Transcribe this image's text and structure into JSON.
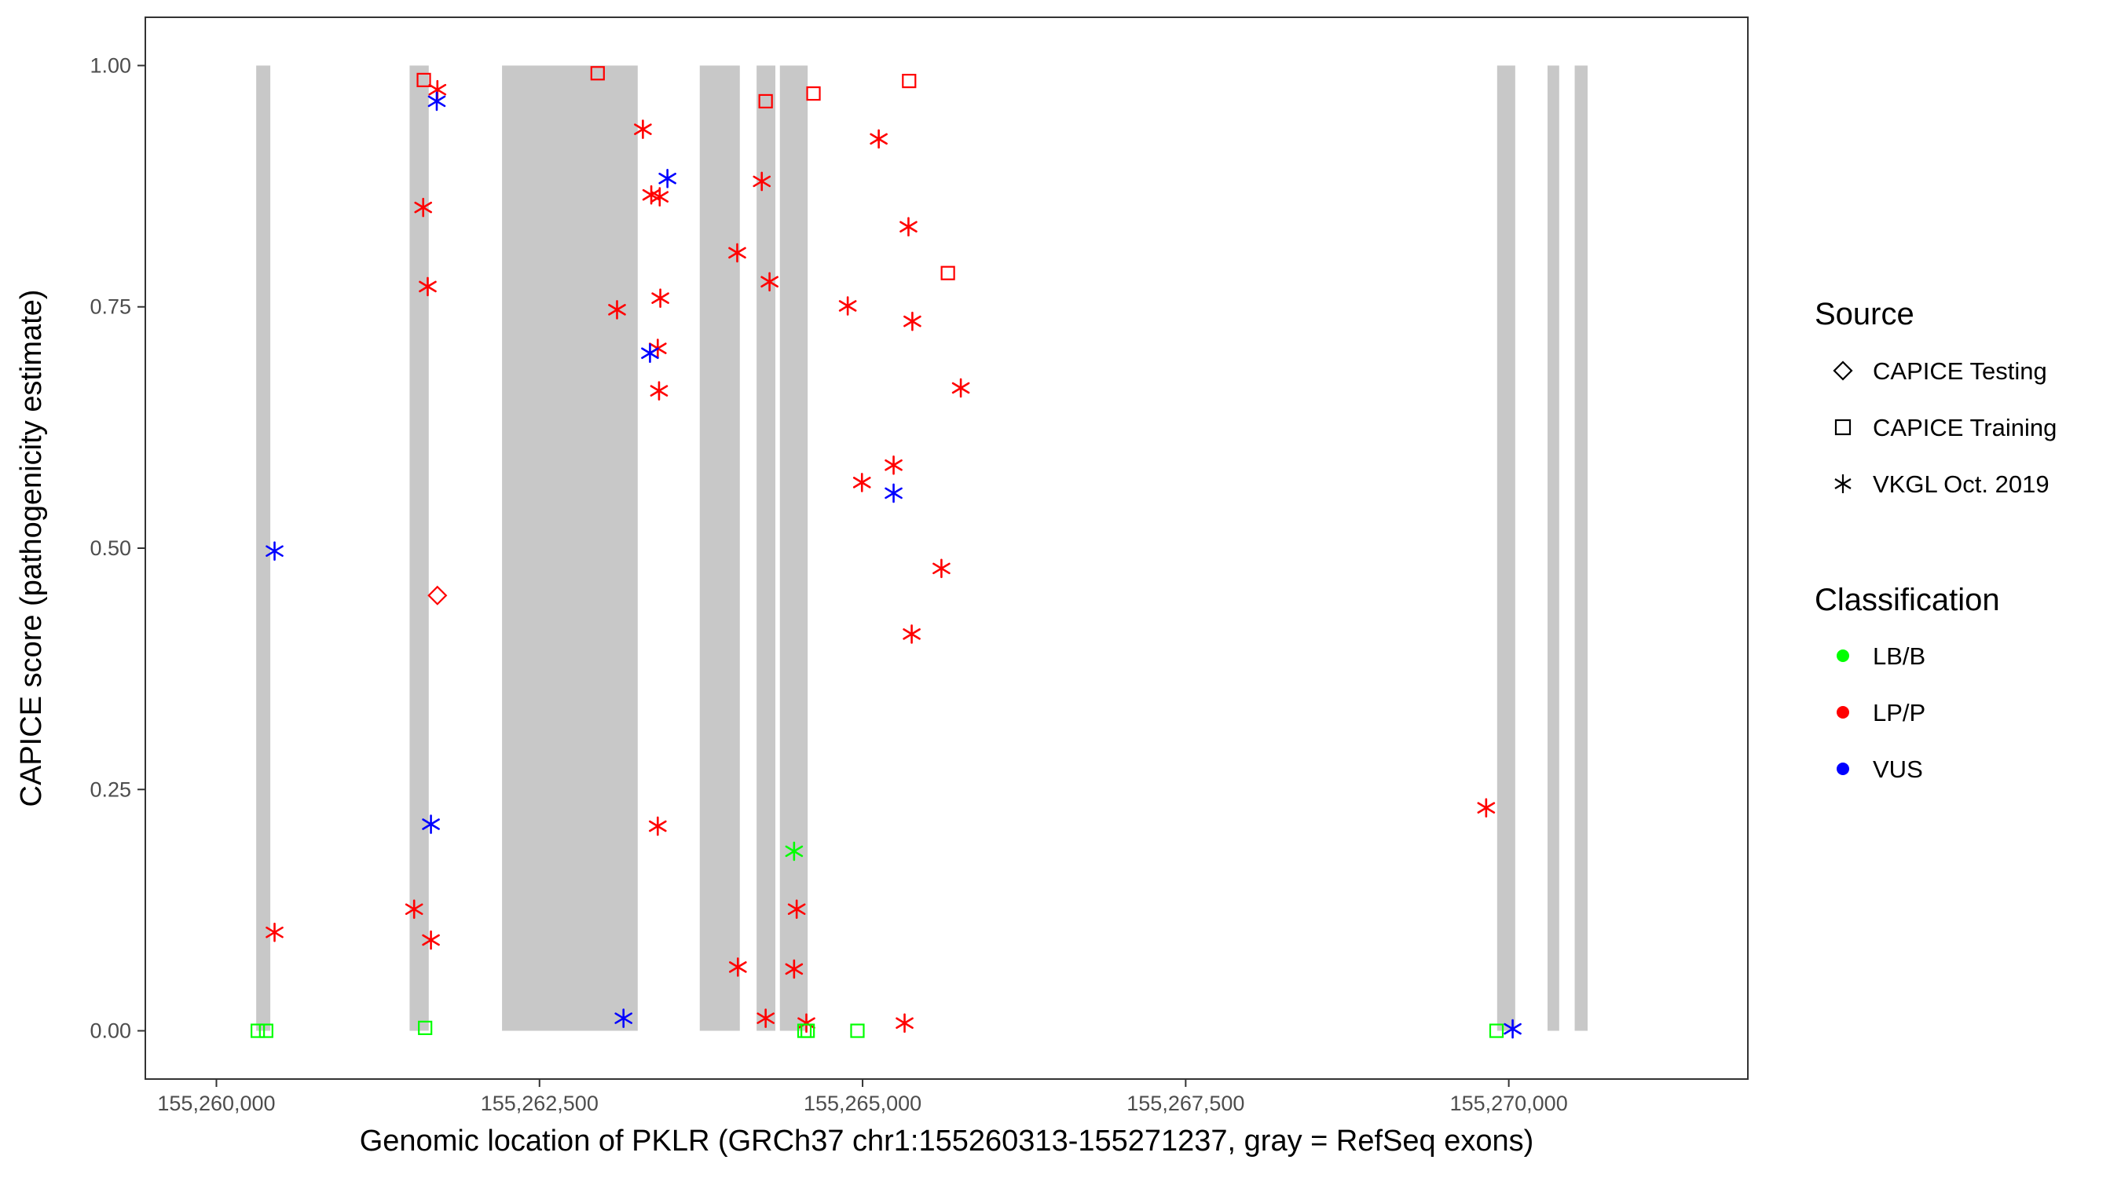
{
  "chart_data": {
    "type": "scatter",
    "xlabel": "Genomic location of PKLR (GRCh37 chr1:155260313-155271237, gray = RefSeq exons)",
    "ylabel": "CAPICE score (pathogenicity estimate)",
    "xlim": [
      155259450,
      155271850
    ],
    "ylim": [
      -0.05,
      1.05
    ],
    "grid": false,
    "exon_color": "#c8c8c8",
    "x_ticks": [
      {
        "value": 155260000,
        "label": "155,260,000"
      },
      {
        "value": 155262500,
        "label": "155,262,500"
      },
      {
        "value": 155265000,
        "label": "155,265,000"
      },
      {
        "value": 155267500,
        "label": "155,267,500"
      },
      {
        "value": 155270000,
        "label": "155,270,000"
      }
    ],
    "y_ticks": [
      {
        "value": 0.0,
        "label": "0.00"
      },
      {
        "value": 0.25,
        "label": "0.25"
      },
      {
        "value": 0.5,
        "label": "0.50"
      },
      {
        "value": 0.75,
        "label": "0.75"
      },
      {
        "value": 1.0,
        "label": "1.00"
      }
    ],
    "exons": [
      [
        155260308,
        155260417
      ],
      [
        155261495,
        155261643
      ],
      [
        155262210,
        155263260
      ],
      [
        155263740,
        155264050
      ],
      [
        155264180,
        155264325
      ],
      [
        155264360,
        155264575
      ],
      [
        155269910,
        155270050
      ],
      [
        155270300,
        155270390
      ],
      [
        155270510,
        155270610
      ]
    ],
    "legend": {
      "source": {
        "title": "Source",
        "items": [
          {
            "label": "CAPICE Testing",
            "shape": "diamond"
          },
          {
            "label": "CAPICE Training",
            "shape": "square"
          },
          {
            "label": "VKGL Oct. 2019",
            "shape": "asterisk"
          }
        ]
      },
      "classification": {
        "title": "Classification",
        "items": [
          {
            "label": "LB/B",
            "color": "#00ff00"
          },
          {
            "label": "LP/P",
            "color": "#ff0000"
          },
          {
            "label": "VUS",
            "color": "#0000ff"
          }
        ]
      }
    },
    "points": [
      {
        "x": 155260450,
        "y": 0.497,
        "shape": "asterisk",
        "cls": "VUS"
      },
      {
        "x": 155260450,
        "y": 0.102,
        "shape": "asterisk",
        "cls": "LP/P"
      },
      {
        "x": 155260320,
        "y": 0.0,
        "shape": "square",
        "cls": "LB/B"
      },
      {
        "x": 155260385,
        "y": 0.0,
        "shape": "square",
        "cls": "LB/B"
      },
      {
        "x": 155261605,
        "y": 0.985,
        "shape": "square",
        "cls": "LP/P"
      },
      {
        "x": 155261710,
        "y": 0.975,
        "shape": "asterisk",
        "cls": "LP/P"
      },
      {
        "x": 155261705,
        "y": 0.963,
        "shape": "asterisk",
        "cls": "VUS"
      },
      {
        "x": 155261600,
        "y": 0.853,
        "shape": "asterisk",
        "cls": "LP/P"
      },
      {
        "x": 155261635,
        "y": 0.771,
        "shape": "asterisk",
        "cls": "LP/P"
      },
      {
        "x": 155261710,
        "y": 0.451,
        "shape": "diamond",
        "cls": "LP/P"
      },
      {
        "x": 155261660,
        "y": 0.214,
        "shape": "asterisk",
        "cls": "VUS"
      },
      {
        "x": 155261530,
        "y": 0.126,
        "shape": "asterisk",
        "cls": "LP/P"
      },
      {
        "x": 155261660,
        "y": 0.094,
        "shape": "asterisk",
        "cls": "LP/P"
      },
      {
        "x": 155261615,
        "y": 0.003,
        "shape": "square",
        "cls": "LB/B"
      },
      {
        "x": 155262950,
        "y": 0.992,
        "shape": "square",
        "cls": "LP/P"
      },
      {
        "x": 155263300,
        "y": 0.934,
        "shape": "asterisk",
        "cls": "LP/P"
      },
      {
        "x": 155263490,
        "y": 0.883,
        "shape": "asterisk",
        "cls": "VUS"
      },
      {
        "x": 155263365,
        "y": 0.866,
        "shape": "asterisk",
        "cls": "LP/P"
      },
      {
        "x": 155263430,
        "y": 0.864,
        "shape": "asterisk",
        "cls": "LP/P"
      },
      {
        "x": 155263435,
        "y": 0.759,
        "shape": "asterisk",
        "cls": "LP/P"
      },
      {
        "x": 155263100,
        "y": 0.747,
        "shape": "asterisk",
        "cls": "LP/P"
      },
      {
        "x": 155263415,
        "y": 0.707,
        "shape": "asterisk",
        "cls": "LP/P"
      },
      {
        "x": 155263355,
        "y": 0.702,
        "shape": "asterisk",
        "cls": "VUS"
      },
      {
        "x": 155263425,
        "y": 0.663,
        "shape": "asterisk",
        "cls": "LP/P"
      },
      {
        "x": 155263415,
        "y": 0.212,
        "shape": "asterisk",
        "cls": "LP/P"
      },
      {
        "x": 155263150,
        "y": 0.013,
        "shape": "asterisk",
        "cls": "VUS"
      },
      {
        "x": 155264250,
        "y": 0.963,
        "shape": "square",
        "cls": "LP/P"
      },
      {
        "x": 155264620,
        "y": 0.971,
        "shape": "square",
        "cls": "LP/P"
      },
      {
        "x": 155264220,
        "y": 0.88,
        "shape": "asterisk",
        "cls": "LP/P"
      },
      {
        "x": 155264030,
        "y": 0.806,
        "shape": "asterisk",
        "cls": "LP/P"
      },
      {
        "x": 155264280,
        "y": 0.776,
        "shape": "asterisk",
        "cls": "LP/P"
      },
      {
        "x": 155264470,
        "y": 0.186,
        "shape": "asterisk",
        "cls": "LB/B"
      },
      {
        "x": 155264490,
        "y": 0.126,
        "shape": "asterisk",
        "cls": "LP/P"
      },
      {
        "x": 155264035,
        "y": 0.066,
        "shape": "asterisk",
        "cls": "LP/P"
      },
      {
        "x": 155264470,
        "y": 0.064,
        "shape": "asterisk",
        "cls": "LP/P"
      },
      {
        "x": 155264250,
        "y": 0.013,
        "shape": "asterisk",
        "cls": "LP/P"
      },
      {
        "x": 155264565,
        "y": 0.008,
        "shape": "asterisk",
        "cls": "LP/P"
      },
      {
        "x": 155264550,
        "y": 0.0,
        "shape": "square",
        "cls": "LB/B"
      },
      {
        "x": 155264575,
        "y": 0.0,
        "shape": "square",
        "cls": "LB/B"
      },
      {
        "x": 155264885,
        "y": 0.751,
        "shape": "asterisk",
        "cls": "LP/P"
      },
      {
        "x": 155264960,
        "y": 0.0,
        "shape": "square",
        "cls": "LB/B"
      },
      {
        "x": 155264995,
        "y": 0.568,
        "shape": "asterisk",
        "cls": "LP/P"
      },
      {
        "x": 155265125,
        "y": 0.924,
        "shape": "asterisk",
        "cls": "LP/P"
      },
      {
        "x": 155265360,
        "y": 0.984,
        "shape": "square",
        "cls": "LP/P"
      },
      {
        "x": 155265355,
        "y": 0.833,
        "shape": "asterisk",
        "cls": "LP/P"
      },
      {
        "x": 155265660,
        "y": 0.785,
        "shape": "square",
        "cls": "LP/P"
      },
      {
        "x": 155265385,
        "y": 0.735,
        "shape": "asterisk",
        "cls": "LP/P"
      },
      {
        "x": 155265760,
        "y": 0.666,
        "shape": "asterisk",
        "cls": "LP/P"
      },
      {
        "x": 155265240,
        "y": 0.586,
        "shape": "asterisk",
        "cls": "LP/P"
      },
      {
        "x": 155265240,
        "y": 0.557,
        "shape": "asterisk",
        "cls": "VUS"
      },
      {
        "x": 155265610,
        "y": 0.479,
        "shape": "asterisk",
        "cls": "LP/P"
      },
      {
        "x": 155265380,
        "y": 0.411,
        "shape": "asterisk",
        "cls": "LP/P"
      },
      {
        "x": 155265325,
        "y": 0.008,
        "shape": "asterisk",
        "cls": "LP/P"
      },
      {
        "x": 155269825,
        "y": 0.231,
        "shape": "asterisk",
        "cls": "LP/P"
      },
      {
        "x": 155269905,
        "y": 0.0,
        "shape": "square",
        "cls": "LB/B"
      },
      {
        "x": 155270030,
        "y": 0.002,
        "shape": "asterisk",
        "cls": "VUS"
      }
    ]
  }
}
